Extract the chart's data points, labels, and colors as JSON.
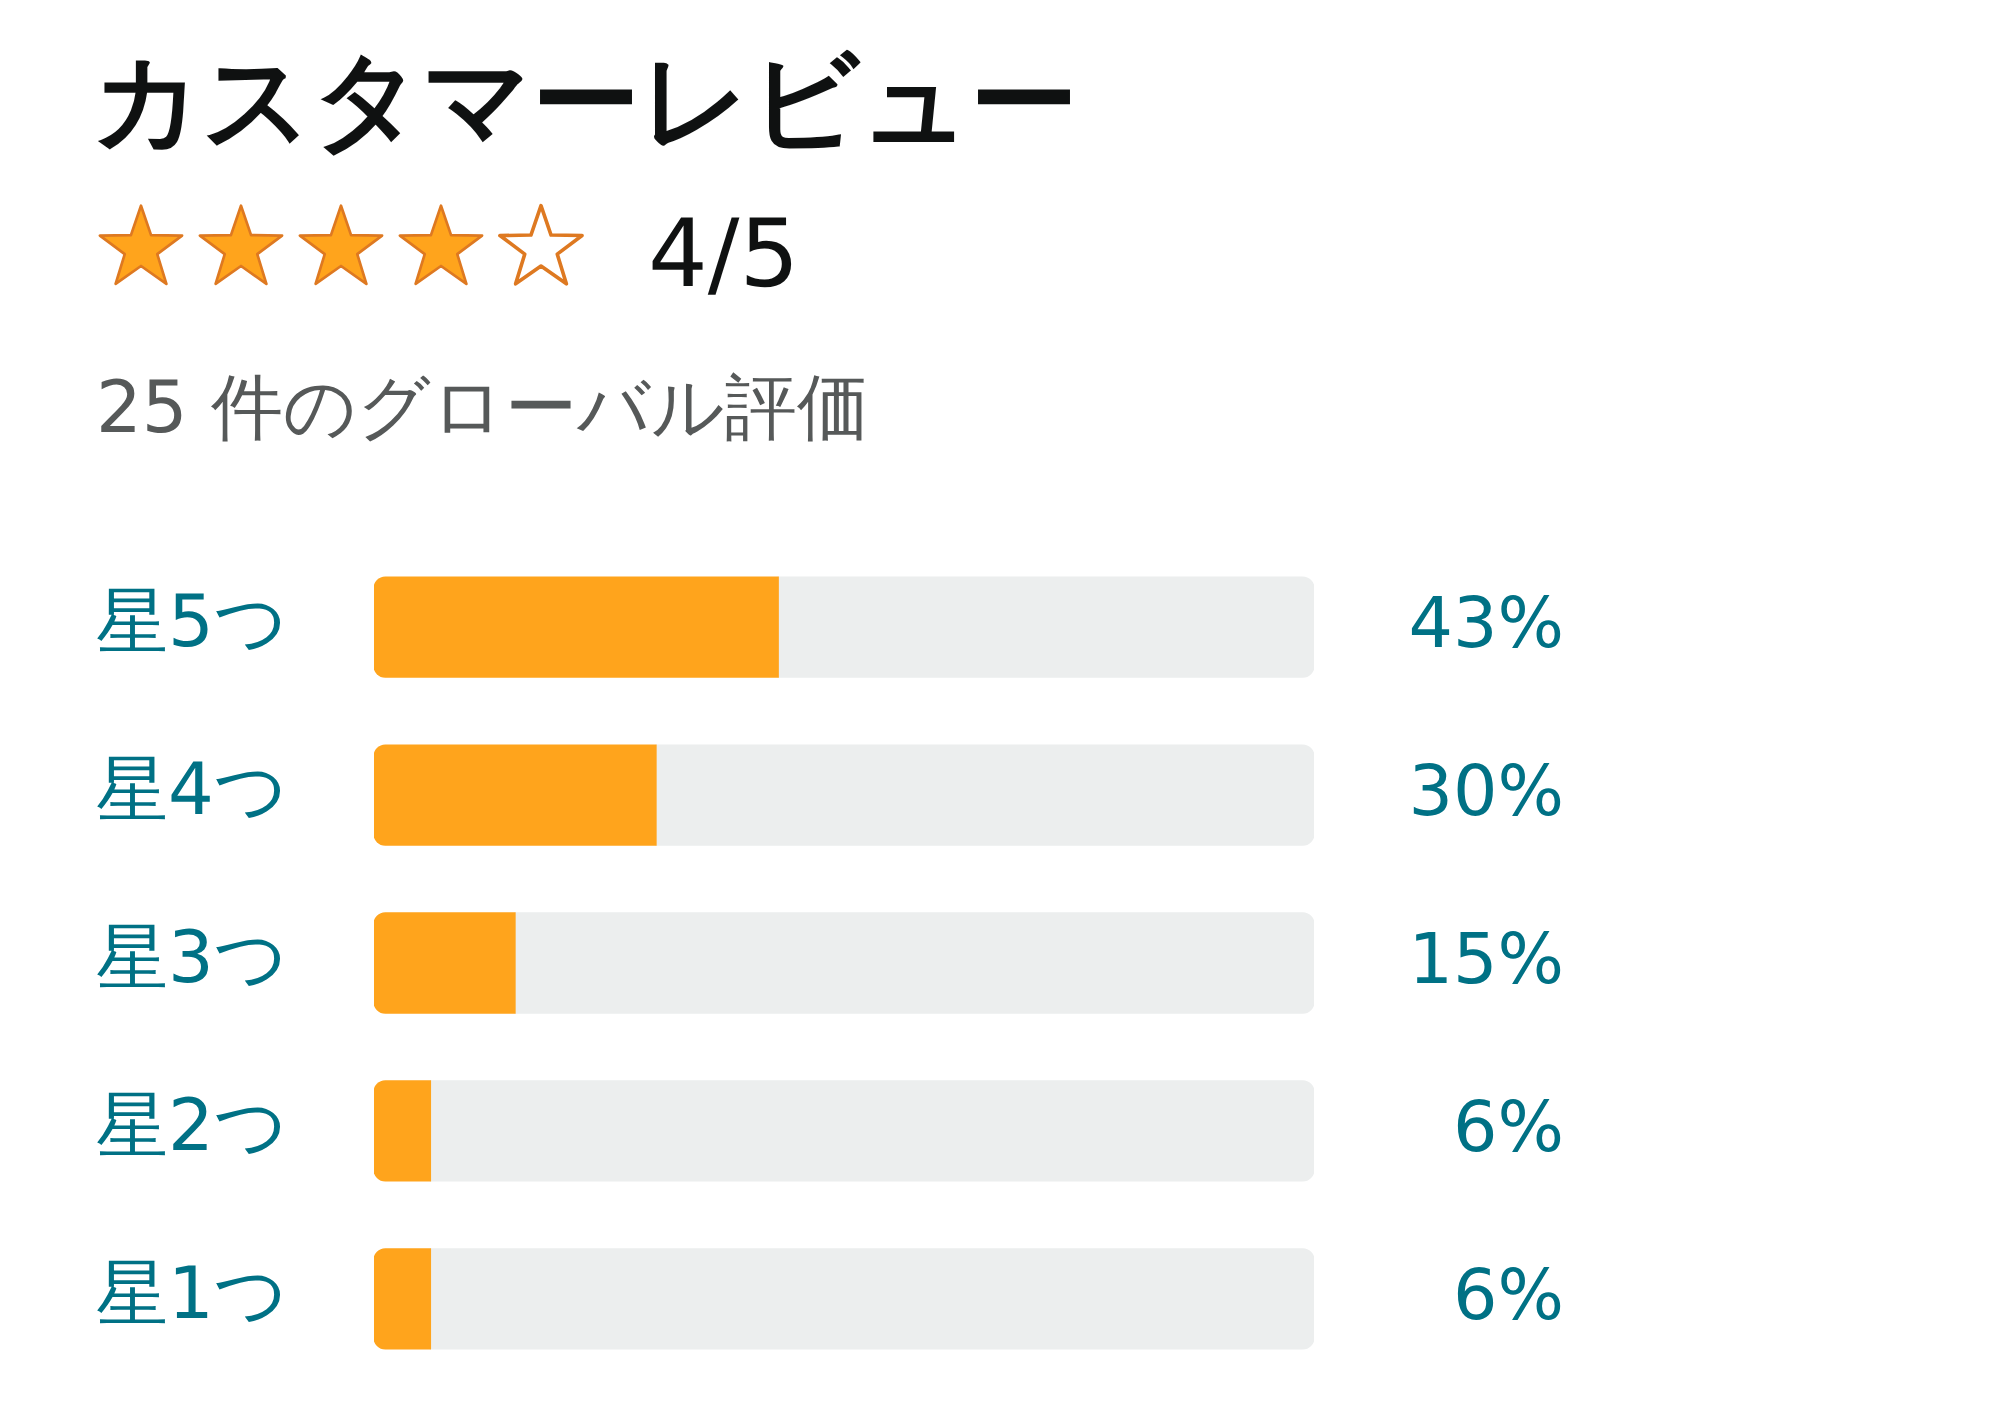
{
  "chart_data": {
    "type": "bar",
    "orientation": "horizontal",
    "stacked": true,
    "title": "カスタマーレビュー",
    "subtitle": "25 件のグローバル評価",
    "annotations": [
      "4/5"
    ],
    "categories": [
      "星5つ",
      "星4つ",
      "星3つ",
      "星2つ",
      "星1つ"
    ],
    "series": [
      {
        "color": "#ffa41c",
        "values": [
          43,
          30,
          15,
          6,
          6
        ],
        "value_labels": [
          "43%",
          "30%",
          "15%",
          "6%",
          "6%"
        ]
      },
      {
        "color": "#eceeee",
        "values": [
          57,
          70,
          85,
          94,
          94
        ]
      }
    ],
    "xlim": [
      0,
      100
    ],
    "tick_labels": "y"
  }
}
